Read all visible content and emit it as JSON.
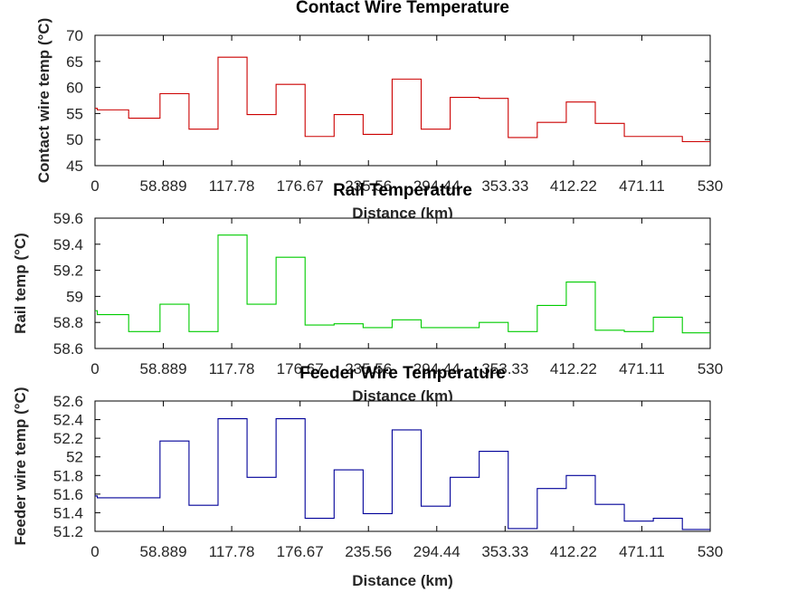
{
  "chart_data": [
    {
      "type": "line",
      "step": true,
      "title": "Contact Wire Temperature",
      "xlabel": "Distance (km)",
      "ylabel": "Contact wire temp (°C)",
      "xlim": [
        0,
        530
      ],
      "ylim": [
        45,
        70
      ],
      "xticks": [
        0,
        58.889,
        117.78,
        176.67,
        235.56,
        294.44,
        353.33,
        412.22,
        471.11,
        530
      ],
      "xtick_labels": [
        "0",
        "58.889",
        "117.78",
        "176.67",
        "235.56",
        "294.44",
        "353.33",
        "412.22",
        "471.11",
        "530"
      ],
      "yticks": [
        45,
        50,
        55,
        60,
        65,
        70
      ],
      "ytick_labels": [
        "45",
        "50",
        "55",
        "60",
        "65",
        "70"
      ],
      "color": "#cc0000",
      "points": [
        {
          "x": 0,
          "y": 56.0
        },
        {
          "x": 2,
          "y": 55.7
        },
        {
          "x": 29,
          "y": 54.1
        },
        {
          "x": 56,
          "y": 58.8
        },
        {
          "x": 81,
          "y": 52.0
        },
        {
          "x": 106,
          "y": 65.8
        },
        {
          "x": 131,
          "y": 54.8
        },
        {
          "x": 156,
          "y": 60.6
        },
        {
          "x": 181,
          "y": 50.6
        },
        {
          "x": 206,
          "y": 54.8
        },
        {
          "x": 231,
          "y": 51.0
        },
        {
          "x": 256,
          "y": 61.6
        },
        {
          "x": 281,
          "y": 52.0
        },
        {
          "x": 306,
          "y": 58.1
        },
        {
          "x": 331,
          "y": 57.9
        },
        {
          "x": 356,
          "y": 50.4
        },
        {
          "x": 381,
          "y": 53.3
        },
        {
          "x": 406,
          "y": 57.2
        },
        {
          "x": 431,
          "y": 53.1
        },
        {
          "x": 456,
          "y": 50.6
        },
        {
          "x": 481,
          "y": 50.6
        },
        {
          "x": 506,
          "y": 49.6
        },
        {
          "x": 530,
          "y": 49.6
        }
      ]
    },
    {
      "type": "line",
      "step": true,
      "title": "Rail Temperature",
      "xlabel": "Distance (km)",
      "ylabel": "Rail temp (°C)",
      "xlim": [
        0,
        530
      ],
      "ylim": [
        58.6,
        59.6
      ],
      "xticks": [
        0,
        58.889,
        117.78,
        176.67,
        235.56,
        294.44,
        353.33,
        412.22,
        471.11,
        530
      ],
      "xtick_labels": [
        "0",
        "58.889",
        "117.78",
        "176.67",
        "235.56",
        "294.44",
        "353.33",
        "412.22",
        "471.11",
        "530"
      ],
      "yticks": [
        58.6,
        58.8,
        59.0,
        59.2,
        59.4,
        59.6
      ],
      "ytick_labels": [
        "58.6",
        "58.8",
        "59",
        "59.2",
        "59.4",
        "59.6"
      ],
      "color": "#00cc00",
      "points": [
        {
          "x": 0,
          "y": 58.89
        },
        {
          "x": 2,
          "y": 58.86
        },
        {
          "x": 29,
          "y": 58.73
        },
        {
          "x": 56,
          "y": 58.94
        },
        {
          "x": 81,
          "y": 58.73
        },
        {
          "x": 106,
          "y": 59.47
        },
        {
          "x": 131,
          "y": 58.94
        },
        {
          "x": 156,
          "y": 59.3
        },
        {
          "x": 181,
          "y": 58.78
        },
        {
          "x": 206,
          "y": 58.79
        },
        {
          "x": 231,
          "y": 58.76
        },
        {
          "x": 256,
          "y": 58.82
        },
        {
          "x": 281,
          "y": 58.76
        },
        {
          "x": 306,
          "y": 58.76
        },
        {
          "x": 331,
          "y": 58.8
        },
        {
          "x": 356,
          "y": 58.73
        },
        {
          "x": 381,
          "y": 58.93
        },
        {
          "x": 406,
          "y": 59.11
        },
        {
          "x": 431,
          "y": 58.74
        },
        {
          "x": 456,
          "y": 58.73
        },
        {
          "x": 481,
          "y": 58.84
        },
        {
          "x": 506,
          "y": 58.72
        },
        {
          "x": 530,
          "y": 58.72
        }
      ]
    },
    {
      "type": "line",
      "step": true,
      "title": "Feeder Wire Temperature",
      "xlabel": "Distance (km)",
      "ylabel": "Feeder wire temp (°C)",
      "xlim": [
        0,
        530
      ],
      "ylim": [
        51.2,
        52.6
      ],
      "xticks": [
        0,
        58.889,
        117.78,
        176.67,
        235.56,
        294.44,
        353.33,
        412.22,
        471.11,
        530
      ],
      "xtick_labels": [
        "0",
        "58.889",
        "117.78",
        "176.67",
        "235.56",
        "294.44",
        "353.33",
        "412.22",
        "471.11",
        "530"
      ],
      "yticks": [
        51.2,
        51.4,
        51.6,
        51.8,
        52.0,
        52.2,
        52.4,
        52.6
      ],
      "ytick_labels": [
        "51.2",
        "51.4",
        "51.6",
        "51.8",
        "52",
        "52.2",
        "52.4",
        "52.6"
      ],
      "color": "#000099",
      "points": [
        {
          "x": 0,
          "y": 51.58
        },
        {
          "x": 2,
          "y": 51.56
        },
        {
          "x": 29,
          "y": 51.56
        },
        {
          "x": 56,
          "y": 52.17
        },
        {
          "x": 81,
          "y": 51.48
        },
        {
          "x": 106,
          "y": 52.41
        },
        {
          "x": 131,
          "y": 51.78
        },
        {
          "x": 156,
          "y": 52.41
        },
        {
          "x": 181,
          "y": 51.34
        },
        {
          "x": 206,
          "y": 51.86
        },
        {
          "x": 231,
          "y": 51.39
        },
        {
          "x": 256,
          "y": 52.29
        },
        {
          "x": 281,
          "y": 51.47
        },
        {
          "x": 306,
          "y": 51.78
        },
        {
          "x": 331,
          "y": 52.06
        },
        {
          "x": 356,
          "y": 51.23
        },
        {
          "x": 381,
          "y": 51.66
        },
        {
          "x": 406,
          "y": 51.8
        },
        {
          "x": 431,
          "y": 51.49
        },
        {
          "x": 456,
          "y": 51.31
        },
        {
          "x": 481,
          "y": 51.34
        },
        {
          "x": 506,
          "y": 51.22
        },
        {
          "x": 530,
          "y": 51.22
        }
      ]
    }
  ]
}
